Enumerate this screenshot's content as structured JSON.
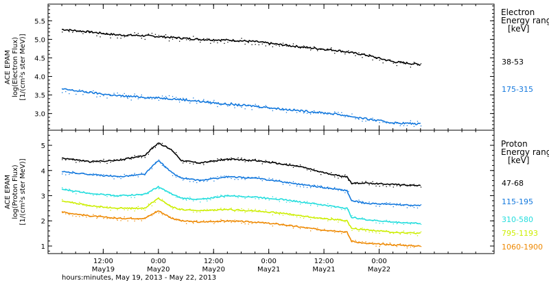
{
  "chart_data": [
    {
      "type": "scatter",
      "ylabel_lines": [
        "ACE EPAM",
        "log(Electron Flux)",
        "[1/(cm²s ster MeV)]"
      ],
      "ylim": [
        2.55,
        5.95
      ],
      "yticks": [
        {
          "v": 3.0,
          "label": "3.0"
        },
        {
          "v": 3.5,
          "label": "3.5"
        },
        {
          "v": 4.0,
          "label": "4.0"
        },
        {
          "v": 4.5,
          "label": "4.5"
        },
        {
          "v": 5.0,
          "label": "5.0"
        },
        {
          "v": 5.5,
          "label": "5.5"
        }
      ],
      "legend_header": [
        "Electron",
        "Energy ranges",
        "[keV]"
      ],
      "series": [
        {
          "name": "38-53",
          "color": "#000000",
          "x": [
            0,
            6,
            12,
            18,
            24,
            30,
            36,
            42,
            48,
            54,
            60,
            66,
            72,
            78
          ],
          "y": [
            5.27,
            5.2,
            5.12,
            5.1,
            5.05,
            5.0,
            4.98,
            4.94,
            4.85,
            4.77,
            4.7,
            4.58,
            4.4,
            4.32
          ]
        },
        {
          "name": "175-315",
          "color": "#1177dd",
          "x": [
            0,
            6,
            12,
            18,
            24,
            30,
            36,
            42,
            48,
            54,
            60,
            66,
            72,
            78
          ],
          "y": [
            3.66,
            3.57,
            3.48,
            3.44,
            3.4,
            3.33,
            3.25,
            3.2,
            3.12,
            3.05,
            2.98,
            2.86,
            2.75,
            2.72
          ]
        }
      ]
    },
    {
      "type": "scatter",
      "ylabel_lines": [
        "ACE EPAM",
        "log(Proton Flux)",
        "[1/(cm²s ster MeV)]"
      ],
      "ylim": [
        0.7,
        5.6
      ],
      "yticks": [
        {
          "v": 1,
          "label": "1"
        },
        {
          "v": 2,
          "label": "2"
        },
        {
          "v": 3,
          "label": "3"
        },
        {
          "v": 4,
          "label": "4"
        },
        {
          "v": 5,
          "label": "5"
        }
      ],
      "legend_header": [
        "Proton",
        "Energy ranges",
        "[keV]"
      ],
      "series": [
        {
          "name": "47-68",
          "color": "#000000",
          "x": [
            0,
            6,
            12,
            18,
            21,
            24,
            26,
            30,
            36,
            42,
            48,
            52,
            56,
            60,
            62,
            63,
            66,
            72,
            78
          ],
          "y": [
            4.5,
            4.35,
            4.4,
            4.6,
            5.1,
            4.8,
            4.4,
            4.3,
            4.45,
            4.4,
            4.25,
            4.15,
            3.95,
            3.8,
            3.75,
            3.5,
            3.5,
            3.45,
            3.4
          ]
        },
        {
          "name": "115-195",
          "color": "#1177dd",
          "x": [
            0,
            6,
            12,
            18,
            21,
            24,
            26,
            30,
            36,
            42,
            48,
            52,
            56,
            60,
            62,
            63,
            66,
            72,
            78
          ],
          "y": [
            3.95,
            3.85,
            3.75,
            3.85,
            4.4,
            3.9,
            3.7,
            3.6,
            3.75,
            3.7,
            3.55,
            3.45,
            3.35,
            3.25,
            3.2,
            2.8,
            2.7,
            2.65,
            2.6
          ]
        },
        {
          "name": "310-580",
          "color": "#22dddd",
          "x": [
            0,
            6,
            12,
            18,
            21,
            24,
            26,
            30,
            36,
            42,
            48,
            52,
            56,
            60,
            62,
            63,
            66,
            72,
            78
          ],
          "y": [
            3.25,
            3.1,
            3.0,
            3.05,
            3.35,
            3.05,
            2.9,
            2.85,
            3.0,
            2.95,
            2.85,
            2.75,
            2.65,
            2.55,
            2.5,
            2.15,
            2.05,
            1.95,
            1.9
          ]
        },
        {
          "name": "795-1193",
          "color": "#ccee00",
          "x": [
            0,
            6,
            12,
            18,
            21,
            24,
            26,
            30,
            36,
            42,
            48,
            52,
            56,
            60,
            62,
            63,
            66,
            72,
            78
          ],
          "y": [
            2.8,
            2.6,
            2.5,
            2.5,
            2.9,
            2.55,
            2.45,
            2.4,
            2.45,
            2.4,
            2.3,
            2.2,
            2.1,
            2.05,
            2.0,
            1.7,
            1.65,
            1.55,
            1.5
          ]
        },
        {
          "name": "1060-1900",
          "color": "#ee8800",
          "x": [
            0,
            6,
            12,
            18,
            21,
            24,
            26,
            30,
            36,
            42,
            48,
            52,
            56,
            60,
            62,
            63,
            66,
            72,
            78
          ],
          "y": [
            2.35,
            2.2,
            2.1,
            2.1,
            2.4,
            2.1,
            2.0,
            1.95,
            2.0,
            1.95,
            1.85,
            1.75,
            1.65,
            1.6,
            1.55,
            1.2,
            1.1,
            1.05,
            1.0
          ]
        }
      ]
    }
  ],
  "x_axis": {
    "xlim": [
      -3,
      94
    ],
    "ticks": [
      {
        "v": 9,
        "line1": "12:00",
        "line2": "May19"
      },
      {
        "v": 21,
        "line1": "0:00",
        "line2": "May20"
      },
      {
        "v": 33,
        "line1": "12:00",
        "line2": "May20"
      },
      {
        "v": 45,
        "line1": "0:00",
        "line2": "May21"
      },
      {
        "v": 57,
        "line1": "12:00",
        "line2": "May21"
      },
      {
        "v": 69,
        "line1": "0:00",
        "line2": "May22"
      }
    ],
    "label": "hours:minutes, May 19, 2013 - May 22, 2013"
  }
}
